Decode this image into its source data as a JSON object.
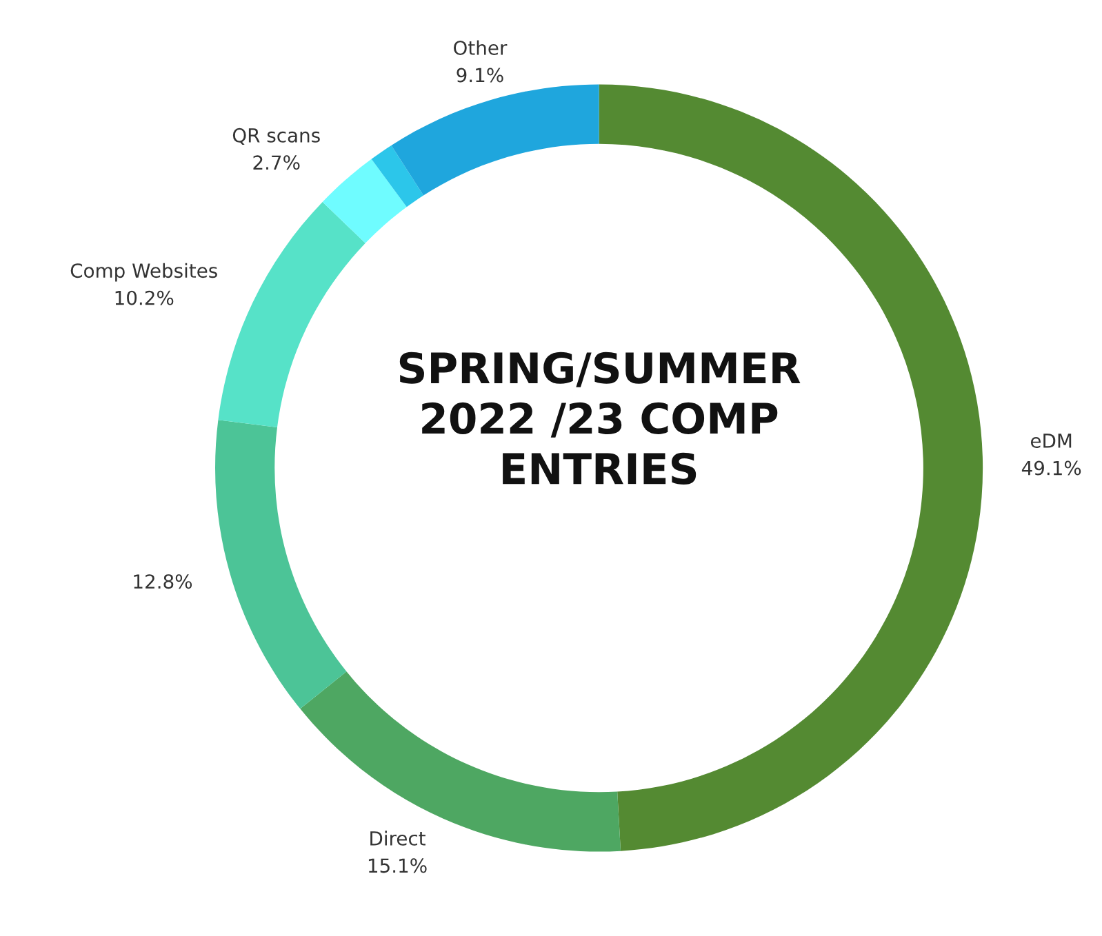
{
  "chart_data": {
    "type": "donut",
    "title": "SPRING/SUMMER\n2022 /23 COMP\nENTRIES",
    "categories": [
      "eDM",
      "Direct",
      null,
      "Comp Websites",
      "QR scans",
      null,
      "Other"
    ],
    "values": [
      49.1,
      15.1,
      12.8,
      10.2,
      2.7,
      1.0,
      9.1
    ],
    "value_labels": [
      "49.1%",
      "15.1%",
      "12.8%",
      "10.2%",
      "2.7%",
      null,
      "9.1%"
    ],
    "colors": [
      "#548a32",
      "#4ea762",
      "#4cc497",
      "#56e2c8",
      "#6ffcff",
      "#2cc6ea",
      "#1fa6dd"
    ],
    "legend": false
  }
}
